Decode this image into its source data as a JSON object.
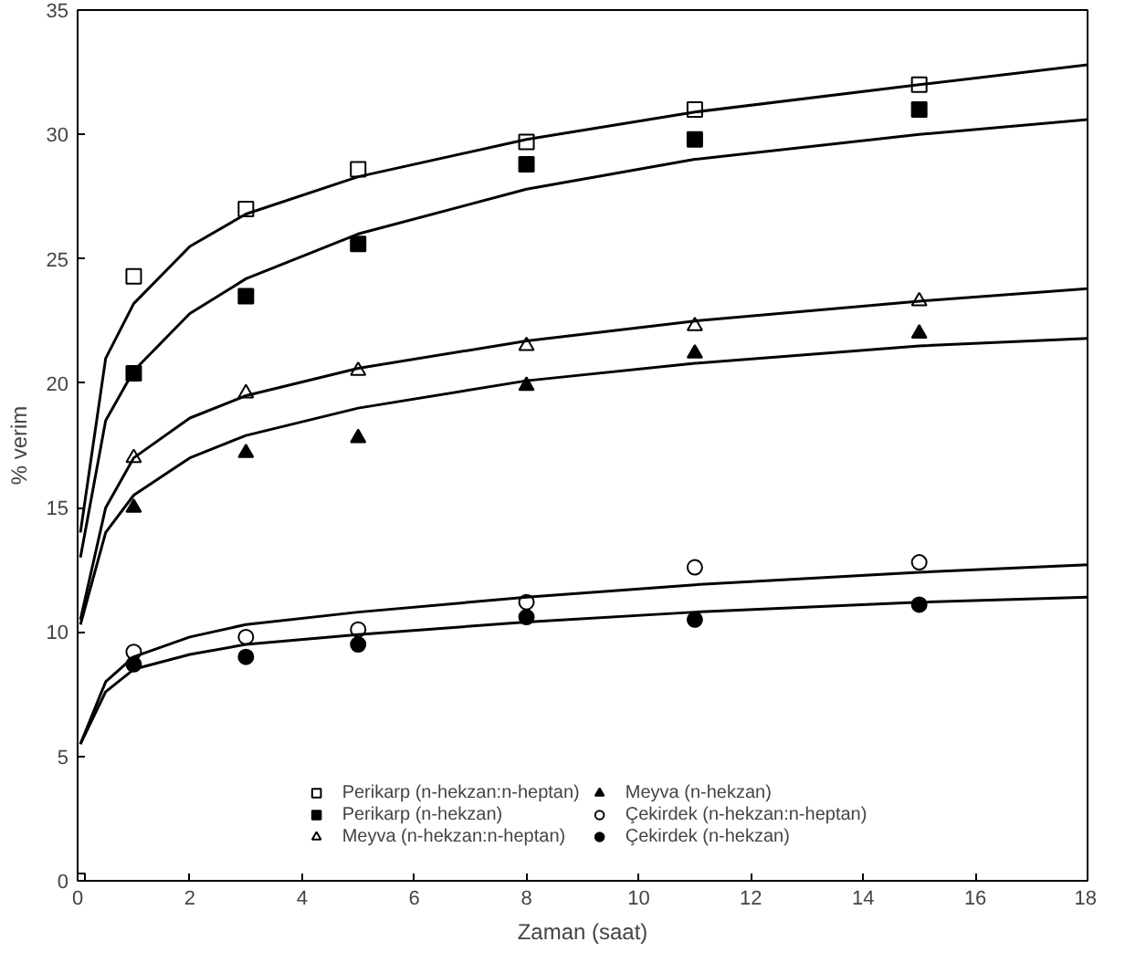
{
  "chart_data": {
    "type": "scatter",
    "xlabel": "Zaman (saat)",
    "ylabel": "% verim",
    "xlim": [
      0,
      18
    ],
    "ylim": [
      0,
      35
    ],
    "xticks": [
      0,
      2,
      4,
      6,
      8,
      10,
      12,
      14,
      16,
      18
    ],
    "yticks": [
      0,
      5,
      10,
      15,
      20,
      25,
      30,
      35
    ],
    "grid": false,
    "legend": "bottom",
    "x": [
      0,
      1,
      3,
      5,
      8,
      11,
      15
    ],
    "series": [
      {
        "name": "Perikarp (n-hekzan:n-heptan)",
        "color": "#ffffff",
        "marker": "square",
        "values": [
          0,
          24.3,
          27,
          28.6,
          29.7,
          31,
          32
        ]
      },
      {
        "name": "Perikarp (n-hekzan)",
        "color": "#000000",
        "marker": "square",
        "values": [
          null,
          20.4,
          23.5,
          25.6,
          28.8,
          29.8,
          31
        ]
      },
      {
        "name": "Meyva (n-hekzan:n-heptan)",
        "color": "#ffffff",
        "marker": "triangle",
        "values": [
          null,
          17,
          19.6,
          20.5,
          21.5,
          22.3,
          23.3
        ]
      },
      {
        "name": "Meyva (n-hekzan)",
        "color": "#000000",
        "marker": "triangle",
        "values": [
          null,
          15,
          17.2,
          17.8,
          19.9,
          21.2,
          22
        ]
      },
      {
        "name": "Çekirdek (n-hekzan:n-heptan)",
        "color": "#ffffff",
        "marker": "circle",
        "values": [
          null,
          9.2,
          9.8,
          10.1,
          11.2,
          12.6,
          12.8
        ]
      },
      {
        "name": "Çekirdek (n-hekzan)",
        "color": "#000000",
        "marker": "circle",
        "values": [
          null,
          8.7,
          9,
          9.5,
          10.6,
          10.5,
          11.1
        ]
      },
      {
        "type": "line",
        "color": "#000000",
        "x": [
          0.05,
          0.5,
          1,
          2,
          3,
          5,
          8,
          11,
          15,
          18
        ],
        "values": [
          14,
          21,
          23.2,
          25.5,
          26.8,
          28.3,
          29.8,
          30.9,
          32,
          32.8
        ]
      },
      {
        "type": "line",
        "color": "#000000",
        "x": [
          0.05,
          0.5,
          1,
          2,
          3,
          5,
          8,
          11,
          15,
          18
        ],
        "values": [
          13,
          18.5,
          20.5,
          22.8,
          24.2,
          26,
          27.8,
          29,
          30,
          30.6
        ]
      },
      {
        "type": "line",
        "color": "#000000",
        "x": [
          0.05,
          0.5,
          1,
          2,
          3,
          5,
          8,
          11,
          15,
          18
        ],
        "values": [
          10.5,
          15,
          17,
          18.6,
          19.5,
          20.6,
          21.7,
          22.5,
          23.3,
          23.8
        ]
      },
      {
        "type": "line",
        "color": "#000000",
        "x": [
          0.05,
          0.5,
          1,
          2,
          3,
          5,
          8,
          11,
          15,
          18
        ],
        "values": [
          10.3,
          14,
          15.5,
          17,
          17.9,
          19,
          20.1,
          20.8,
          21.5,
          21.8
        ]
      },
      {
        "type": "line",
        "color": "#000000",
        "x": [
          0.05,
          0.5,
          1,
          2,
          3,
          5,
          8,
          11,
          15,
          18
        ],
        "values": [
          5.5,
          8,
          9,
          9.8,
          10.3,
          10.8,
          11.4,
          11.9,
          12.4,
          12.7
        ]
      },
      {
        "type": "line",
        "color": "#000000",
        "x": [
          0.05,
          0.5,
          1,
          2,
          3,
          5,
          8,
          11,
          15,
          18
        ],
        "values": [
          5.5,
          7.6,
          8.5,
          9.1,
          9.5,
          9.9,
          10.4,
          10.8,
          11.2,
          11.4
        ]
      }
    ]
  }
}
